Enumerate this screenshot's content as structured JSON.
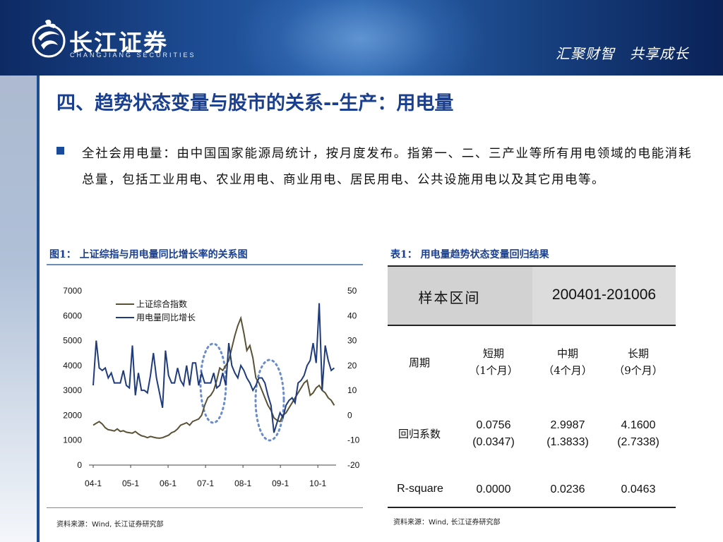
{
  "header": {
    "logo_text": "长江证券",
    "logo_sub": "CHANGJIANG SECURITIES",
    "slogan": "汇聚财智　共享成长"
  },
  "title": "四、趋势状态变量与股市的关系--生产：用电量",
  "bullet": "全社会用电量：由中国国家能源局统计，按月度发布。指第一、二、三产业等所有用电领域的电能消耗总量，包括工业用电、农业用电、商业用电、居民用电、公共设施用电以及其它用电等。",
  "figure": {
    "caption": "图1：  上证综指与用电量同比增长率的关系图",
    "source": "资料来源：Wind, 长江证券研究部"
  },
  "table": {
    "caption": "表1：  用电量趋势状态变量回归结果",
    "header": {
      "label": "样本区间",
      "value": "200401-201006"
    },
    "columns_label": "周期",
    "columns": [
      {
        "name": "短期",
        "sub": "（1个月）"
      },
      {
        "name": "中期",
        "sub": "（4个月）"
      },
      {
        "name": "长期",
        "sub": "（9个月）"
      }
    ],
    "rows": [
      {
        "label": "回归系数",
        "values": [
          "0.0756",
          "2.9987",
          "4.1600"
        ],
        "se": [
          "(0.0347)",
          "(1.3833)",
          "(2.7338)"
        ]
      },
      {
        "label": "R-square",
        "values": [
          "0.0000",
          "0.0236",
          "0.0463"
        ]
      }
    ],
    "source": "资料来源：Wind, 长江证券研究部"
  },
  "colors": {
    "index_line": "#5a5236",
    "elec_line": "#1f3b7a",
    "ellipse": "#6a8cc8",
    "title": "#1a3f8f"
  },
  "chart_data": {
    "type": "line",
    "x_ticks": [
      "04-1",
      "05-1",
      "06-1",
      "07-1",
      "08-1",
      "09-1",
      "10-1"
    ],
    "y_left": {
      "lim": [
        0,
        7000
      ],
      "ticks": [
        "0",
        "1000",
        "2000",
        "3000",
        "4000",
        "5000",
        "6000",
        "7000"
      ]
    },
    "y_right": {
      "lim": [
        -20,
        50
      ],
      "ticks": [
        "-20",
        "-10",
        "0",
        "10",
        "20",
        "30",
        "40",
        "50"
      ]
    },
    "legend_placement": "top-left",
    "series": [
      {
        "name": "上证综合指数",
        "axis": "left",
        "values": [
          1600,
          1680,
          1750,
          1650,
          1500,
          1420,
          1400,
          1370,
          1450,
          1350,
          1380,
          1320,
          1300,
          1280,
          1350,
          1250,
          1180,
          1150,
          1100,
          1150,
          1120,
          1090,
          1080,
          1100,
          1150,
          1200,
          1300,
          1350,
          1450,
          1600,
          1650,
          1700,
          1600,
          1750,
          1800,
          1850,
          2000,
          2400,
          2700,
          2800,
          3000,
          3400,
          3900,
          3800,
          4000,
          4200,
          4700,
          5200,
          5600,
          5900,
          5300,
          4600,
          4800,
          4300,
          3500,
          3300,
          3000,
          2700,
          2400,
          2200,
          1900,
          1800,
          1750,
          2000,
          2100,
          2300,
          2500,
          2700,
          2900,
          3100,
          3300,
          3400,
          2800,
          2900,
          3100,
          3200,
          3000,
          2900,
          2700,
          2600,
          2400
        ]
      },
      {
        "name": "用电量同比增长",
        "axis": "right",
        "values": [
          12,
          30,
          19,
          18,
          19,
          15,
          17,
          13,
          13,
          13,
          18,
          12,
          11,
          28,
          8,
          17,
          10,
          10,
          9,
          16,
          25,
          15,
          9,
          3,
          26,
          16,
          13,
          13,
          19,
          14,
          12,
          20,
          12,
          21,
          21,
          12,
          17,
          13,
          13,
          13,
          17,
          11,
          12,
          17,
          12,
          29,
          20,
          17,
          15,
          20,
          18,
          15,
          13,
          10,
          12,
          15,
          15,
          13,
          8,
          4,
          -7,
          -3,
          1,
          -1,
          4,
          6,
          7,
          5,
          13,
          14,
          16,
          20,
          22,
          29,
          21,
          45,
          10,
          28,
          22,
          18,
          19
        ]
      }
    ]
  }
}
